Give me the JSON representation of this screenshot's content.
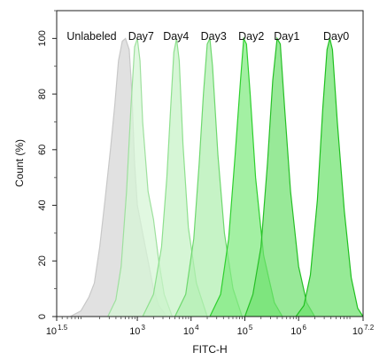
{
  "chart_data": {
    "type": "area",
    "title": "",
    "xlabel": "FITC-H",
    "ylabel": "Count (%)",
    "x_scale": "log10",
    "xlim": [
      1.5,
      7.2
    ],
    "ylim": [
      0,
      110
    ],
    "grid": false,
    "x_ticks": [
      {
        "base": "10",
        "exp": "1.5",
        "value": 1.5
      },
      {
        "base": "10",
        "exp": "3",
        "value": 3
      },
      {
        "base": "10",
        "exp": "4",
        "value": 4
      },
      {
        "base": "10",
        "exp": "5",
        "value": 5
      },
      {
        "base": "10",
        "exp": "6",
        "value": 6
      },
      {
        "base": "10",
        "exp": "7.2",
        "value": 7.2
      }
    ],
    "y_ticks": [
      "0",
      "20",
      "40",
      "60",
      "80",
      "100"
    ],
    "series": [
      {
        "name": "Unlabeled",
        "peak_log10": 2.75,
        "color": "#dcdcdc",
        "stroke": "#c8c8c8",
        "label_log10": 2.15,
        "points": [
          [
            1.75,
            0
          ],
          [
            1.95,
            2
          ],
          [
            2.1,
            7
          ],
          [
            2.2,
            12
          ],
          [
            2.3,
            25
          ],
          [
            2.4,
            42
          ],
          [
            2.5,
            60
          ],
          [
            2.58,
            76
          ],
          [
            2.65,
            92
          ],
          [
            2.72,
            99
          ],
          [
            2.78,
            100
          ],
          [
            2.85,
            96
          ],
          [
            2.9,
            80
          ],
          [
            2.95,
            55
          ],
          [
            3.0,
            40
          ],
          [
            3.1,
            30
          ],
          [
            3.2,
            20
          ],
          [
            3.3,
            10
          ],
          [
            3.4,
            4
          ],
          [
            3.55,
            0
          ]
        ]
      },
      {
        "name": "Day7",
        "peak_log10": 2.98,
        "color": "#d6f5d6",
        "stroke": "#9ee09e",
        "label_log10": 3.07,
        "points": [
          [
            2.45,
            0
          ],
          [
            2.6,
            6
          ],
          [
            2.7,
            18
          ],
          [
            2.8,
            45
          ],
          [
            2.88,
            75
          ],
          [
            2.95,
            97
          ],
          [
            3.0,
            100
          ],
          [
            3.05,
            92
          ],
          [
            3.1,
            70
          ],
          [
            3.2,
            45
          ],
          [
            3.3,
            35
          ],
          [
            3.4,
            20
          ],
          [
            3.5,
            8
          ],
          [
            3.65,
            0
          ]
        ]
      },
      {
        "name": "Day4",
        "peak_log10": 3.72,
        "color": "#c6f2c6",
        "stroke": "#8ee08e",
        "label_log10": 3.72,
        "points": [
          [
            3.1,
            0
          ],
          [
            3.3,
            8
          ],
          [
            3.45,
            25
          ],
          [
            3.55,
            50
          ],
          [
            3.62,
            75
          ],
          [
            3.68,
            95
          ],
          [
            3.73,
            100
          ],
          [
            3.78,
            92
          ],
          [
            3.85,
            62
          ],
          [
            3.95,
            32
          ],
          [
            4.1,
            12
          ],
          [
            4.3,
            0
          ]
        ]
      },
      {
        "name": "Day3",
        "peak_log10": 4.32,
        "color": "#b0eeb0",
        "stroke": "#6ed86e",
        "label_log10": 4.42,
        "points": [
          [
            3.7,
            0
          ],
          [
            3.9,
            8
          ],
          [
            4.05,
            28
          ],
          [
            4.15,
            55
          ],
          [
            4.23,
            80
          ],
          [
            4.3,
            98
          ],
          [
            4.35,
            100
          ],
          [
            4.4,
            90
          ],
          [
            4.5,
            58
          ],
          [
            4.62,
            30
          ],
          [
            4.78,
            10
          ],
          [
            4.95,
            0
          ]
        ]
      },
      {
        "name": "Day2",
        "peak_log10": 5.0,
        "color": "#80ea80",
        "stroke": "#2ed02e",
        "label_log10": 5.12,
        "points": [
          [
            4.35,
            0
          ],
          [
            4.55,
            8
          ],
          [
            4.7,
            28
          ],
          [
            4.82,
            58
          ],
          [
            4.92,
            85
          ],
          [
            4.98,
            100
          ],
          [
            5.03,
            98
          ],
          [
            5.1,
            80
          ],
          [
            5.2,
            50
          ],
          [
            5.35,
            22
          ],
          [
            5.55,
            5
          ],
          [
            5.7,
            0
          ]
        ]
      },
      {
        "name": "Day1",
        "peak_log10": 5.62,
        "color": "#70e070",
        "stroke": "#26c026",
        "label_log10": 5.78,
        "points": [
          [
            5.0,
            0
          ],
          [
            5.15,
            8
          ],
          [
            5.3,
            25
          ],
          [
            5.42,
            55
          ],
          [
            5.52,
            85
          ],
          [
            5.6,
            100
          ],
          [
            5.66,
            98
          ],
          [
            5.74,
            75
          ],
          [
            5.85,
            45
          ],
          [
            6.0,
            18
          ],
          [
            6.15,
            5
          ],
          [
            6.3,
            0
          ]
        ]
      },
      {
        "name": "Day0",
        "peak_log10": 6.58,
        "color": "#6ee26e",
        "stroke": "#20c020",
        "label_log10": 6.7,
        "points": [
          [
            5.95,
            0
          ],
          [
            6.1,
            4
          ],
          [
            6.22,
            15
          ],
          [
            6.35,
            42
          ],
          [
            6.45,
            75
          ],
          [
            6.53,
            96
          ],
          [
            6.58,
            100
          ],
          [
            6.63,
            96
          ],
          [
            6.72,
            70
          ],
          [
            6.85,
            38
          ],
          [
            6.98,
            14
          ],
          [
            7.1,
            3
          ],
          [
            7.2,
            0
          ]
        ]
      }
    ]
  }
}
